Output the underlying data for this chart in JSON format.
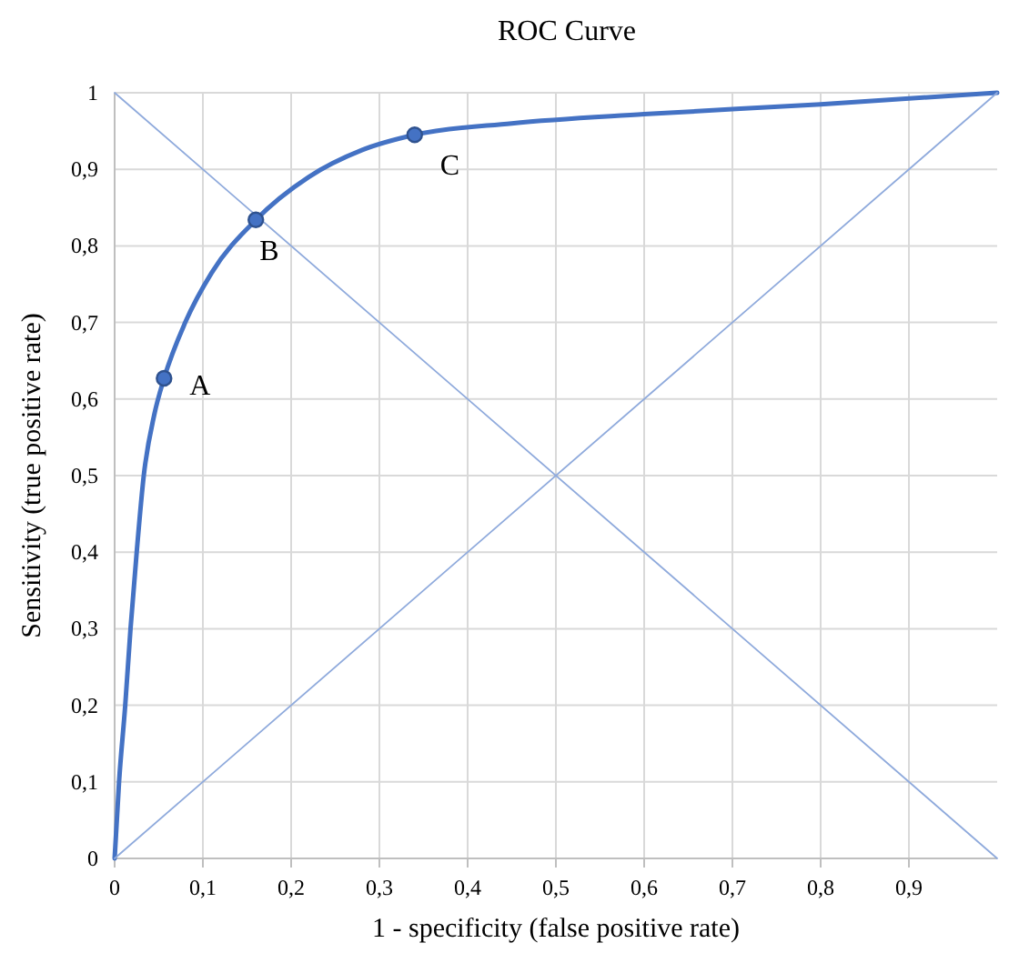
{
  "chart_data": {
    "type": "line",
    "title": "ROC Curve",
    "xlabel": "1 - specificity (false positive rate)",
    "ylabel": "Sensitivity (true positive rate)",
    "xlim": [
      0,
      1
    ],
    "ylim": [
      0,
      1
    ],
    "xticks": [
      0,
      {
        "value": 0.1,
        "label": "0,1"
      },
      {
        "value": 0.2,
        "label": "0,2"
      },
      {
        "value": 0.3,
        "label": "0,3"
      },
      {
        "value": 0.4,
        "label": "0,4"
      },
      {
        "value": 0.5,
        "label": "0,5"
      },
      {
        "value": 0.6,
        "label": "0,6"
      },
      {
        "value": 0.7,
        "label": "0,7"
      },
      {
        "value": 0.8,
        "label": "0,8"
      },
      {
        "value": 0.9,
        "label": "0,9"
      }
    ],
    "yticks": [
      0,
      {
        "value": 0.1,
        "label": "0,1"
      },
      {
        "value": 0.2,
        "label": "0,2"
      },
      {
        "value": 0.3,
        "label": "0,3"
      },
      {
        "value": 0.4,
        "label": "0,4"
      },
      {
        "value": 0.5,
        "label": "0,5"
      },
      {
        "value": 0.6,
        "label": "0,6"
      },
      {
        "value": 0.7,
        "label": "0,7"
      },
      {
        "value": 0.8,
        "label": "0,8"
      },
      {
        "value": 0.9,
        "label": "0,9"
      },
      1
    ],
    "grid": true,
    "series": [
      {
        "color": "#4472c4",
        "marker": "none",
        "x": [
          0,
          0.005,
          0.012,
          0.018,
          0.025,
          0.033,
          0.045,
          0.056,
          0.08,
          0.11,
          0.16,
          0.22,
          0.28,
          0.34,
          0.45,
          0.6,
          0.8,
          1
        ],
        "values": [
          0,
          0.1,
          0.2,
          0.3,
          0.4,
          0.5,
          0.58,
          0.627,
          0.7,
          0.765,
          0.834,
          0.89,
          0.925,
          0.945,
          0.96,
          0.972,
          0.985,
          1
        ]
      },
      {
        "color": "#8faadc",
        "marker": "none",
        "x": [
          0,
          1
        ],
        "values": [
          0,
          1
        ]
      },
      {
        "color": "#8faadc",
        "marker": "none",
        "x": [
          0,
          1
        ],
        "values": [
          1,
          0
        ]
      },
      {
        "type": "scatter",
        "color": "#4472c4",
        "marker": "circle",
        "x": [
          0.056,
          0.16,
          0.34
        ],
        "values": [
          0.627,
          0.834,
          0.945
        ]
      }
    ],
    "annotations": [
      {
        "text": "A",
        "x": 0.056,
        "y": 0.627
      },
      {
        "text": "B",
        "x": 0.16,
        "y": 0.834
      },
      {
        "text": "C",
        "x": 0.34,
        "y": 0.945
      }
    ]
  }
}
